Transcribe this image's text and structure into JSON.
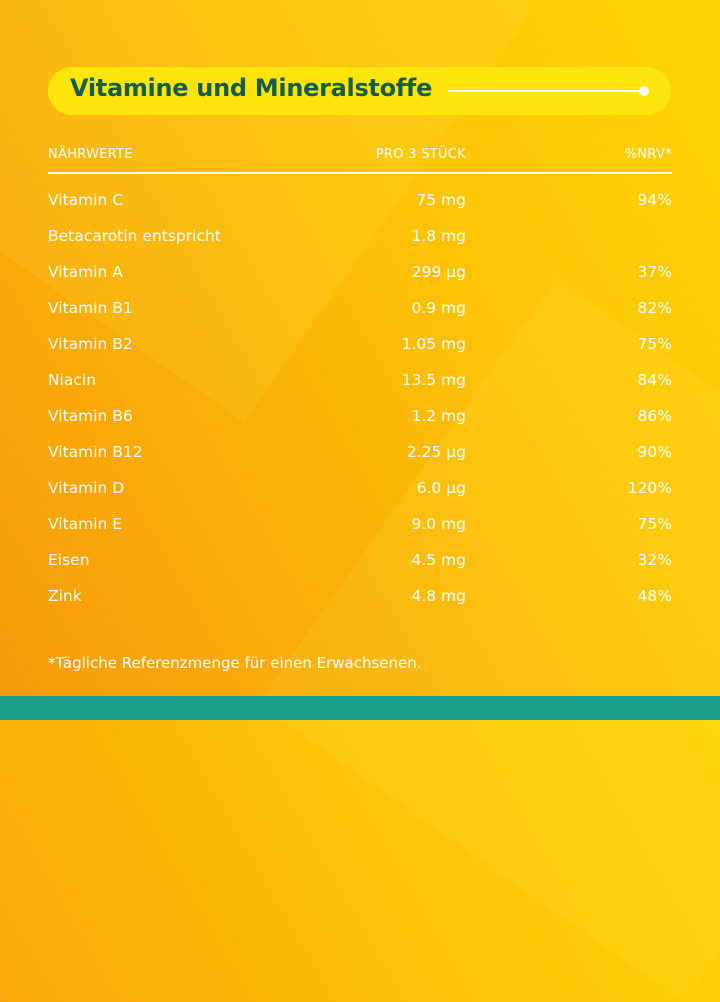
{
  "title": "Vitamine und Mineralstoffe",
  "table": {
    "headers": {
      "name": "NÄHRWERTE",
      "amount": "PRO 3 STÜCK",
      "nrv": "%NRV*"
    },
    "rows": [
      {
        "name": "Vitamin C",
        "amount": "75 mg",
        "nrv": "94%"
      },
      {
        "name": "Betacarotin entspricht",
        "amount": "1.8 mg",
        "nrv": ""
      },
      {
        "name": "Vitamin A",
        "amount": "299 µg",
        "nrv": "37%"
      },
      {
        "name": "Vitamin B1",
        "amount": "0.9 mg",
        "nrv": "82%"
      },
      {
        "name": "Vitamin B2",
        "amount": "1.05 mg",
        "nrv": "75%"
      },
      {
        "name": "Niacin",
        "amount": "13.5 mg",
        "nrv": "84%"
      },
      {
        "name": "Vitamin B6",
        "amount": "1.2 mg",
        "nrv": "86%"
      },
      {
        "name": "Vitamin B12",
        "amount": "2.25 µg",
        "nrv": "90%"
      },
      {
        "name": "Vitamin D",
        "amount": "6.0 µg",
        "nrv": "120%"
      },
      {
        "name": "Vitamin E",
        "amount": "9.0 mg",
        "nrv": "75%"
      },
      {
        "name": "Eisen",
        "amount": "4.5 mg",
        "nrv": "32%"
      },
      {
        "name": "Zink",
        "amount": "4.8 mg",
        "nrv": "48%"
      }
    ]
  },
  "footnote": "*Tägliche Referenzmenge für einen Erwachsenen.",
  "colors": {
    "title_pill": "#fde50b",
    "title_text": "#155c4a",
    "bottom_bar": "#1a9e8c",
    "text": "#ffffff"
  }
}
